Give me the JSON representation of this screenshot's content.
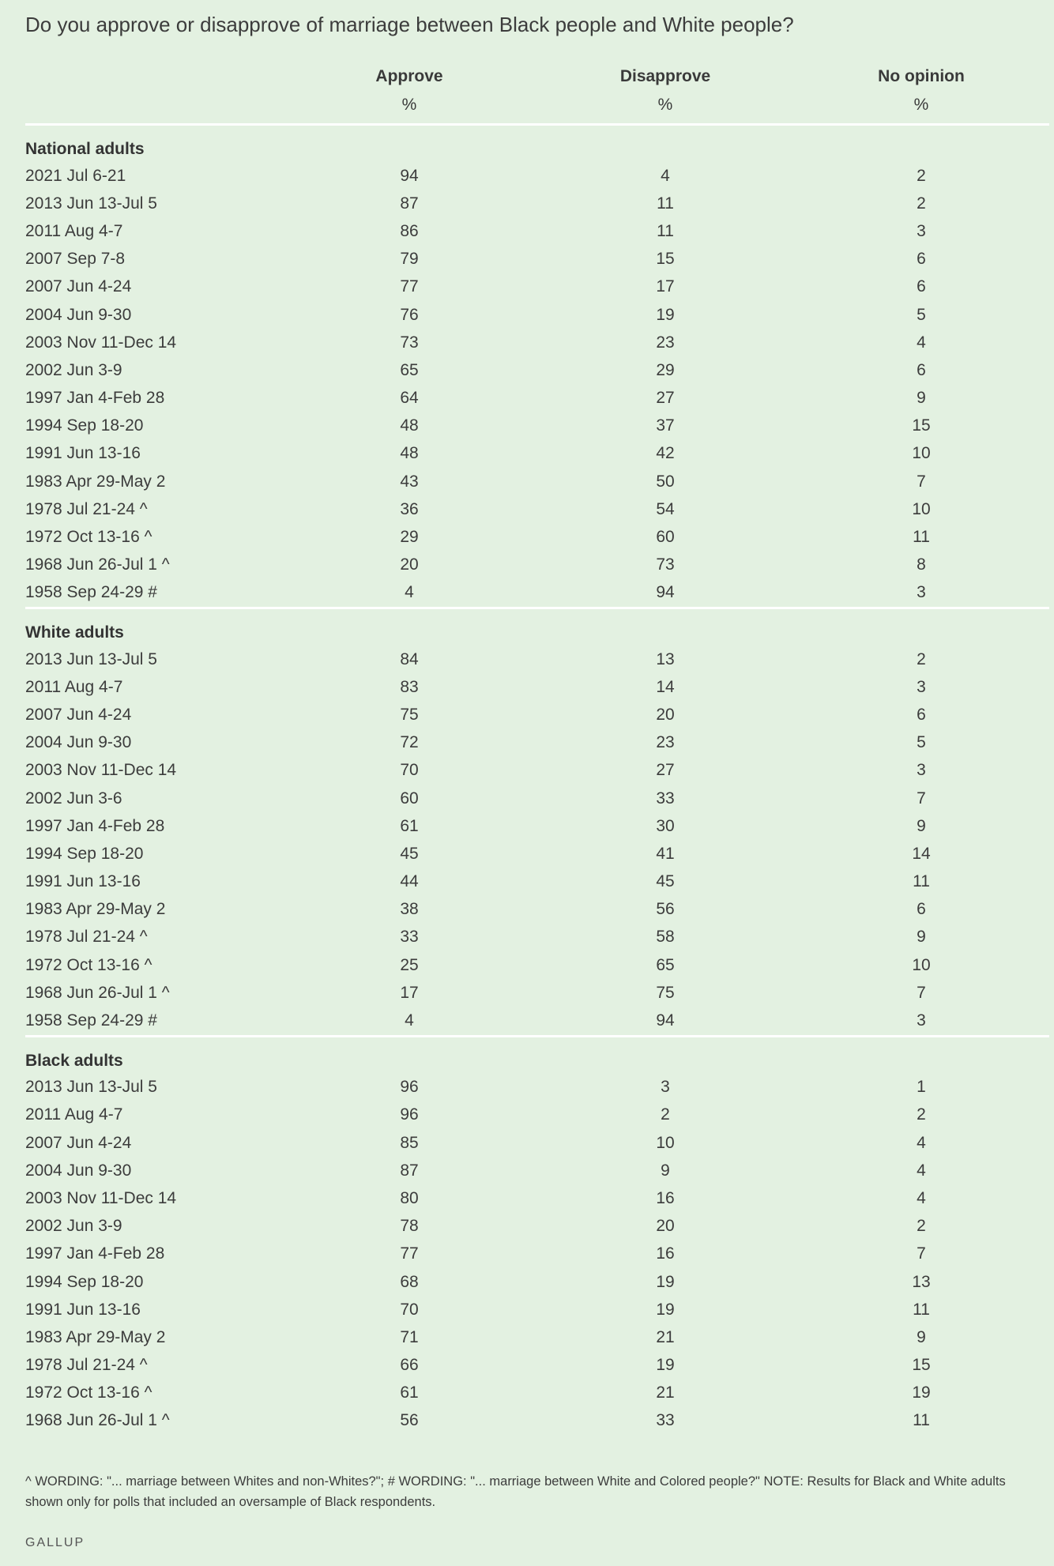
{
  "question": "Do you approve or disapprove of marriage between Black people and White people?",
  "columns": [
    "Approve",
    "Disapprove",
    "No opinion"
  ],
  "units": [
    "%",
    "%",
    "%"
  ],
  "groups": [
    {
      "name": "National adults",
      "rows": [
        [
          "2021 Jul 6-21",
          "94",
          "4",
          "2"
        ],
        [
          "2013 Jun 13-Jul 5",
          "87",
          "11",
          "2"
        ],
        [
          "2011 Aug 4-7",
          "86",
          "11",
          "3"
        ],
        [
          "2007 Sep 7-8",
          "79",
          "15",
          "6"
        ],
        [
          "2007 Jun 4-24",
          "77",
          "17",
          "6"
        ],
        [
          "2004 Jun 9-30",
          "76",
          "19",
          "5"
        ],
        [
          "2003 Nov 11-Dec 14",
          "73",
          "23",
          "4"
        ],
        [
          "2002 Jun 3-9",
          "65",
          "29",
          "6"
        ],
        [
          "1997 Jan 4-Feb 28",
          "64",
          "27",
          "9"
        ],
        [
          "1994 Sep 18-20",
          "48",
          "37",
          "15"
        ],
        [
          "1991 Jun 13-16",
          "48",
          "42",
          "10"
        ],
        [
          "1983 Apr 29-May 2",
          "43",
          "50",
          "7"
        ],
        [
          "1978 Jul 21-24 ^",
          "36",
          "54",
          "10"
        ],
        [
          "1972 Oct 13-16 ^",
          "29",
          "60",
          "11"
        ],
        [
          "1968 Jun 26-Jul 1 ^",
          "20",
          "73",
          "8"
        ],
        [
          "1958 Sep 24-29 #",
          "4",
          "94",
          "3"
        ]
      ]
    },
    {
      "name": "White adults",
      "rows": [
        [
          "2013 Jun 13-Jul 5",
          "84",
          "13",
          "2"
        ],
        [
          "2011 Aug 4-7",
          "83",
          "14",
          "3"
        ],
        [
          "2007 Jun 4-24",
          "75",
          "20",
          "6"
        ],
        [
          "2004 Jun 9-30",
          "72",
          "23",
          "5"
        ],
        [
          "2003 Nov 11-Dec 14",
          "70",
          "27",
          "3"
        ],
        [
          "2002 Jun 3-6",
          "60",
          "33",
          "7"
        ],
        [
          "1997 Jan 4-Feb 28",
          "61",
          "30",
          "9"
        ],
        [
          "1994 Sep 18-20",
          "45",
          "41",
          "14"
        ],
        [
          "1991 Jun 13-16",
          "44",
          "45",
          "11"
        ],
        [
          "1983 Apr 29-May 2",
          "38",
          "56",
          "6"
        ],
        [
          "1978 Jul 21-24 ^",
          "33",
          "58",
          "9"
        ],
        [
          "1972 Oct 13-16 ^",
          "25",
          "65",
          "10"
        ],
        [
          "1968 Jun 26-Jul 1 ^",
          "17",
          "75",
          "7"
        ],
        [
          "1958 Sep 24-29 #",
          "4",
          "94",
          "3"
        ]
      ]
    },
    {
      "name": "Black adults",
      "rows": [
        [
          "2013 Jun 13-Jul 5",
          "96",
          "3",
          "1"
        ],
        [
          "2011 Aug 4-7",
          "96",
          "2",
          "2"
        ],
        [
          "2007 Jun 4-24",
          "85",
          "10",
          "4"
        ],
        [
          "2004 Jun 9-30",
          "87",
          "9",
          "4"
        ],
        [
          "2003 Nov 11-Dec 14",
          "80",
          "16",
          "4"
        ],
        [
          "2002 Jun 3-9",
          "78",
          "20",
          "2"
        ],
        [
          "1997 Jan 4-Feb 28",
          "77",
          "16",
          "7"
        ],
        [
          "1994 Sep 18-20",
          "68",
          "19",
          "13"
        ],
        [
          "1991 Jun 13-16",
          "70",
          "19",
          "11"
        ],
        [
          "1983 Apr 29-May 2",
          "71",
          "21",
          "9"
        ],
        [
          "1978 Jul 21-24 ^",
          "66",
          "19",
          "15"
        ],
        [
          "1972 Oct 13-16 ^",
          "61",
          "21",
          "19"
        ],
        [
          "1968 Jun 26-Jul 1 ^",
          "56",
          "33",
          "11"
        ]
      ]
    }
  ],
  "footnote": "^ WORDING: \"... marriage between Whites and non-Whites?\"; # WORDING: \"... marriage between White and Colored people?\" NOTE: Results for Black and White adults shown only for polls that included an oversample of Black respondents.",
  "source": "GALLUP"
}
